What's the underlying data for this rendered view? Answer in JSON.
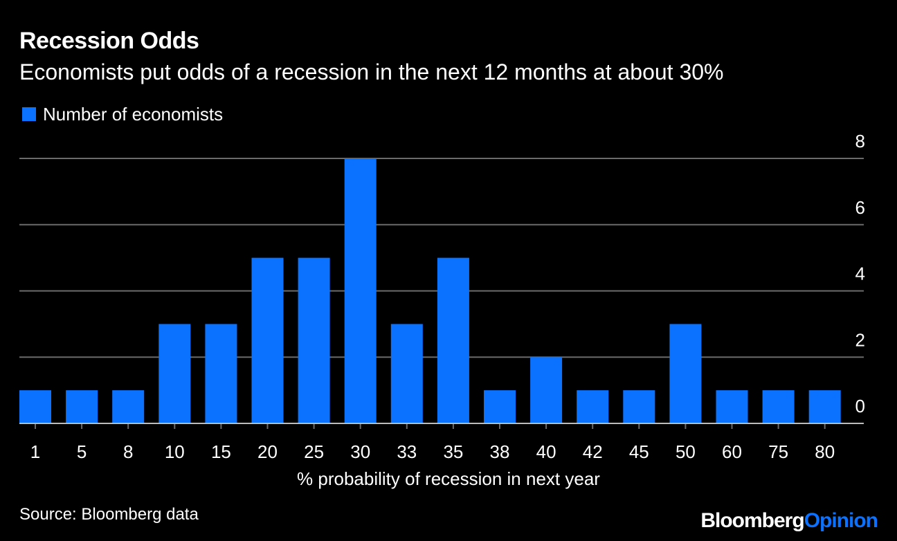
{
  "header": {
    "title": "Recession Odds",
    "subtitle": "Economists put odds of a recession in the next 12 months at about 30%"
  },
  "legend": {
    "label": "Number of economists"
  },
  "footer": {
    "source": "Source: Bloomberg data",
    "brand_part1": "Bloomberg",
    "brand_part2": "Opinion"
  },
  "colors": {
    "background": "#000000",
    "bar": "#0a72ff",
    "grid": "#6b6b6b",
    "text": "#ffffff",
    "brand_accent": "#0a72ff"
  },
  "chart_data": {
    "type": "bar",
    "title": "Recession Odds",
    "subtitle": "Economists put odds of a recession in the next 12 months at about 30%",
    "xlabel": "% probability of recession in next year",
    "ylabel": "",
    "categories": [
      "1",
      "5",
      "8",
      "10",
      "15",
      "20",
      "25",
      "30",
      "33",
      "35",
      "38",
      "40",
      "42",
      "45",
      "50",
      "60",
      "75",
      "80"
    ],
    "series": [
      {
        "name": "Number of economists",
        "values": [
          1,
          1,
          1,
          3,
          3,
          5,
          5,
          8,
          3,
          5,
          1,
          2,
          1,
          1,
          3,
          1,
          1,
          1
        ]
      }
    ],
    "ylim": [
      0,
      8
    ],
    "yticks": [
      "0",
      "2",
      "4",
      "6",
      "8"
    ],
    "grid": true,
    "y_axis_position": "right",
    "legend_position": "top-left"
  }
}
